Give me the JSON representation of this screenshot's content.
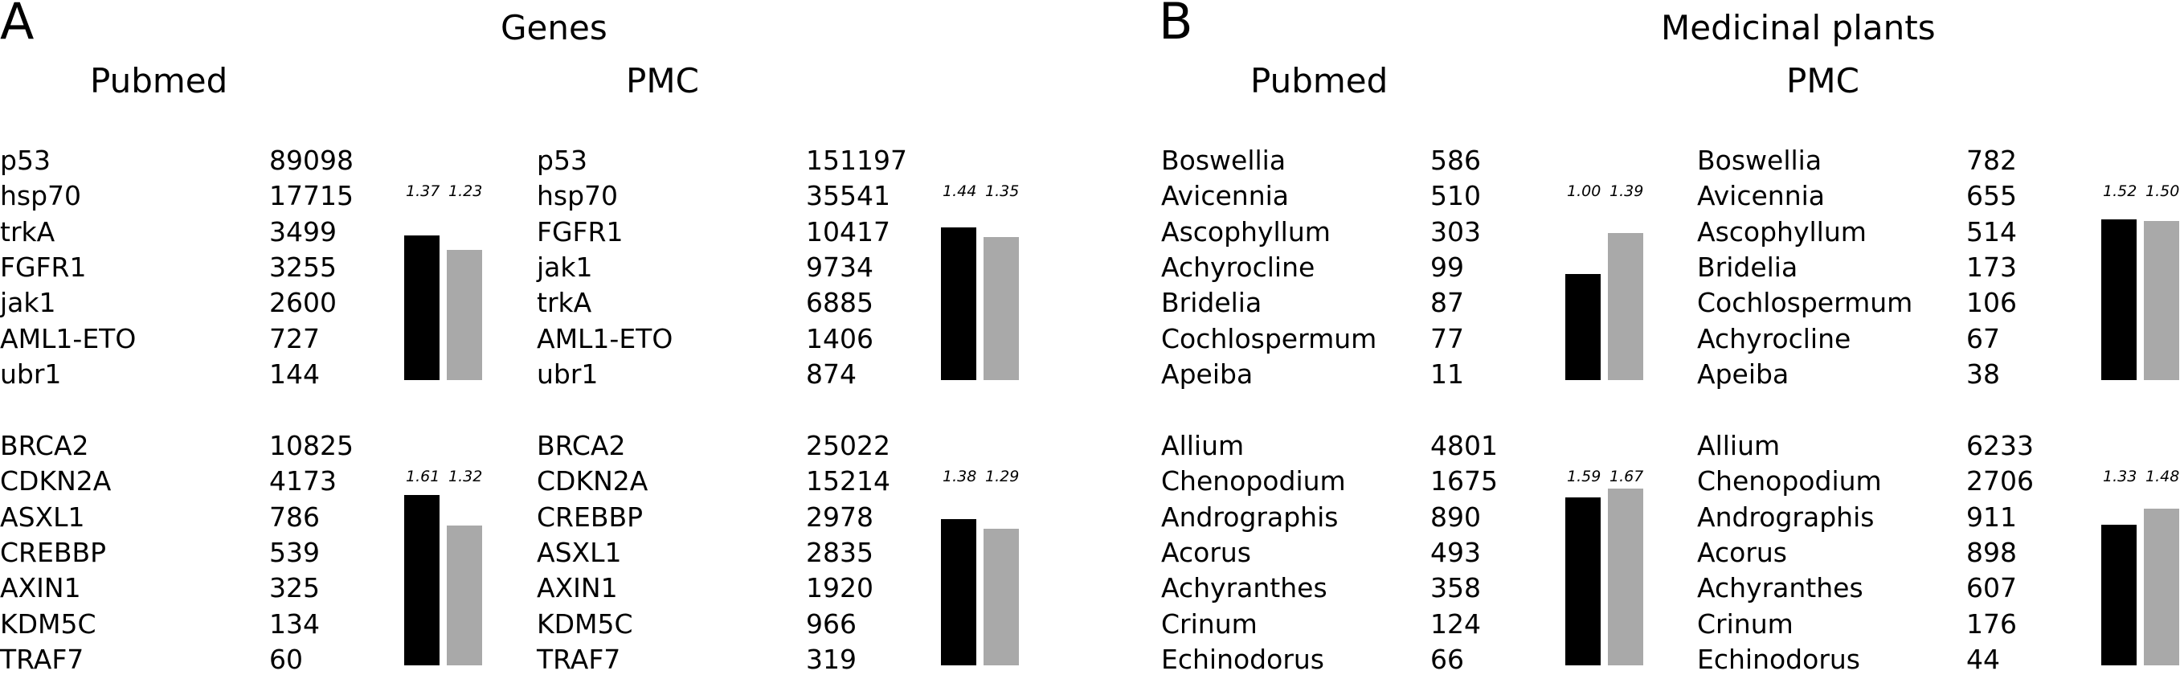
{
  "panels": [
    {
      "letter": "A",
      "title": "Genes"
    },
    {
      "letter": "B",
      "title": "Medicinal plants"
    }
  ],
  "column_titles": [
    "Pubmed",
    "PMC",
    "Pubmed",
    "PMC"
  ],
  "colors": {
    "series1": "#000000",
    "series2": "#a9a9a9"
  },
  "chart_data": [
    {
      "type": "table",
      "panel": "A",
      "section": "Genes",
      "column": "Pubmed",
      "group": 1,
      "rows": [
        {
          "name": "p53",
          "count": "89098"
        },
        {
          "name": "hsp70",
          "count": "17715"
        },
        {
          "name": "trkA",
          "count": "3499"
        },
        {
          "name": "FGFR1",
          "count": "3255"
        },
        {
          "name": "jak1",
          "count": "2600"
        },
        {
          "name": "AML1-ETO",
          "count": "727"
        },
        {
          "name": "ubr1",
          "count": "144"
        }
      ],
      "bars": {
        "type": "bar",
        "values": [
          1.37,
          1.23
        ]
      }
    },
    {
      "type": "table",
      "panel": "A",
      "section": "Genes",
      "column": "PMC",
      "group": 1,
      "rows": [
        {
          "name": "p53",
          "count": "151197"
        },
        {
          "name": "hsp70",
          "count": "35541"
        },
        {
          "name": "FGFR1",
          "count": "10417"
        },
        {
          "name": "jak1",
          "count": "9734"
        },
        {
          "name": "trkA",
          "count": "6885"
        },
        {
          "name": "AML1-ETO",
          "count": "1406"
        },
        {
          "name": "ubr1",
          "count": "874"
        }
      ],
      "bars": {
        "type": "bar",
        "values": [
          1.44,
          1.35
        ]
      }
    },
    {
      "type": "table",
      "panel": "A",
      "section": "Genes",
      "column": "Pubmed",
      "group": 2,
      "rows": [
        {
          "name": "BRCA2",
          "count": "10825"
        },
        {
          "name": "CDKN2A",
          "count": "4173"
        },
        {
          "name": "ASXL1",
          "count": "786"
        },
        {
          "name": "CREBBP",
          "count": "539"
        },
        {
          "name": "AXIN1",
          "count": "325"
        },
        {
          "name": "KDM5C",
          "count": "134"
        },
        {
          "name": "TRAF7",
          "count": "60"
        }
      ],
      "bars": {
        "type": "bar",
        "values": [
          1.61,
          1.32
        ]
      }
    },
    {
      "type": "table",
      "panel": "A",
      "section": "Genes",
      "column": "PMC",
      "group": 2,
      "rows": [
        {
          "name": "BRCA2",
          "count": "25022"
        },
        {
          "name": "CDKN2A",
          "count": "15214"
        },
        {
          "name": "CREBBP",
          "count": "2978"
        },
        {
          "name": "ASXL1",
          "count": "2835"
        },
        {
          "name": "AXIN1",
          "count": "1920"
        },
        {
          "name": "KDM5C",
          "count": "966"
        },
        {
          "name": "TRAF7",
          "count": "319"
        }
      ],
      "bars": {
        "type": "bar",
        "values": [
          1.38,
          1.29
        ]
      }
    },
    {
      "type": "table",
      "panel": "B",
      "section": "Medicinal plants",
      "column": "Pubmed",
      "group": 1,
      "rows": [
        {
          "name": "Boswellia",
          "count": "586"
        },
        {
          "name": "Avicennia",
          "count": "510"
        },
        {
          "name": "Ascophyllum",
          "count": "303"
        },
        {
          "name": "Achyrocline",
          "count": "99"
        },
        {
          "name": "Bridelia",
          "count": "87"
        },
        {
          "name": "Cochlospermum",
          "count": "77"
        },
        {
          "name": "Apeiba",
          "count": "11"
        }
      ],
      "bars": {
        "type": "bar",
        "values": [
          1.0,
          1.39
        ]
      }
    },
    {
      "type": "table",
      "panel": "B",
      "section": "Medicinal plants",
      "column": "PMC",
      "group": 1,
      "rows": [
        {
          "name": "Boswellia",
          "count": "782"
        },
        {
          "name": "Avicennia",
          "count": "655"
        },
        {
          "name": "Ascophyllum",
          "count": "514"
        },
        {
          "name": "Bridelia",
          "count": "173"
        },
        {
          "name": "Cochlospermum",
          "count": "106"
        },
        {
          "name": "Achyrocline",
          "count": "67"
        },
        {
          "name": "Apeiba",
          "count": "38"
        }
      ],
      "bars": {
        "type": "bar",
        "values": [
          1.52,
          1.5
        ]
      }
    },
    {
      "type": "table",
      "panel": "B",
      "section": "Medicinal plants",
      "column": "Pubmed",
      "group": 2,
      "rows": [
        {
          "name": "Allium",
          "count": "4801"
        },
        {
          "name": "Chenopodium",
          "count": "1675"
        },
        {
          "name": "Andrographis",
          "count": "890"
        },
        {
          "name": "Acorus",
          "count": "493"
        },
        {
          "name": "Achyranthes",
          "count": "358"
        },
        {
          "name": "Crinum",
          "count": "124"
        },
        {
          "name": "Echinodorus",
          "count": "66"
        }
      ],
      "bars": {
        "type": "bar",
        "values": [
          1.59,
          1.67
        ]
      }
    },
    {
      "type": "table",
      "panel": "B",
      "section": "Medicinal plants",
      "column": "PMC",
      "group": 2,
      "rows": [
        {
          "name": "Allium",
          "count": "6233"
        },
        {
          "name": "Chenopodium",
          "count": "2706"
        },
        {
          "name": "Andrographis",
          "count": "911"
        },
        {
          "name": "Acorus",
          "count": "898"
        },
        {
          "name": "Achyranthes",
          "count": "607"
        },
        {
          "name": "Crinum",
          "count": "176"
        },
        {
          "name": "Echinodorus",
          "count": "44"
        }
      ],
      "bars": {
        "type": "bar",
        "values": [
          1.33,
          1.48
        ]
      }
    }
  ]
}
